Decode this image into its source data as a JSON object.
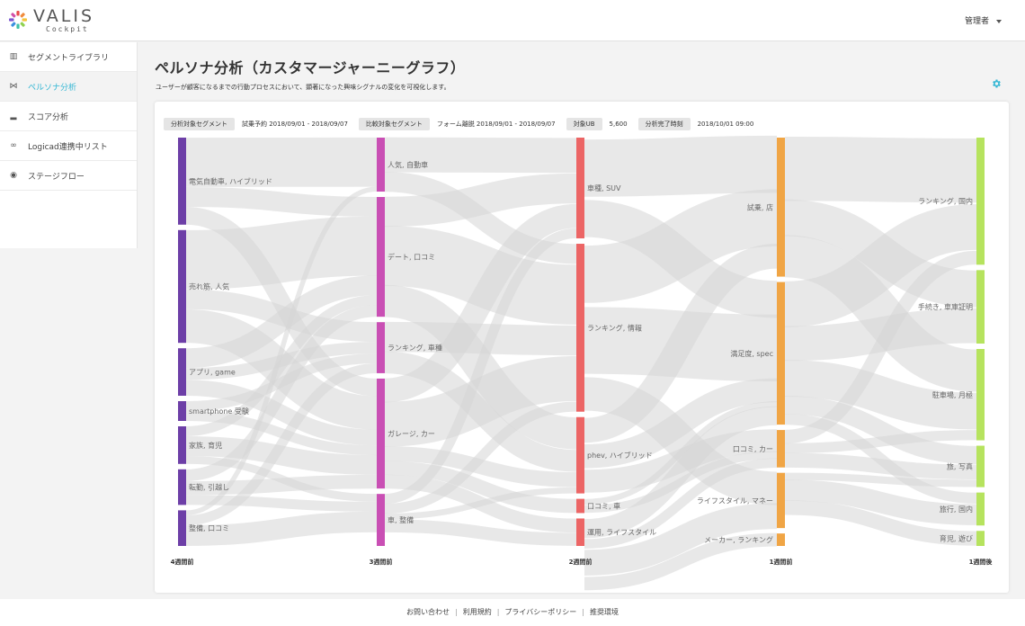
{
  "brand": {
    "name": "VALIS",
    "sub": "Cockpit"
  },
  "user": {
    "label": "管理者"
  },
  "sidebar": {
    "items": [
      {
        "label": "セグメントライブラリ",
        "icon": "bars-icon",
        "glyph": "▥"
      },
      {
        "label": "ペルソナ分析",
        "icon": "sankey-icon",
        "glyph": "⋈"
      },
      {
        "label": "スコア分析",
        "icon": "bar-chart-icon",
        "glyph": "▂"
      },
      {
        "label": "Logicad連携中リスト",
        "icon": "link-icon",
        "glyph": "∞"
      },
      {
        "label": "ステージフロー",
        "icon": "eye-icon",
        "glyph": "◉"
      }
    ]
  },
  "page": {
    "title": "ペルソナ分析（カスタマージャーニーグラフ）",
    "description": "ユーザーが顧客になるまでの行動プロセスにおいて、顕著になった興味シグナルの変化を可視化します。"
  },
  "filters": {
    "segment_label": "分析対象セグメント",
    "segment_value": "試乗予約 2018/09/01 - 2018/09/07",
    "compare_label": "比較対象セグメント",
    "compare_value": "フォーム離脱 2018/09/01 - 2018/09/07",
    "ub_label": "対象UB",
    "ub_value": "5,600",
    "done_label": "分析完了時刻",
    "done_value": "2018/10/01 09:00"
  },
  "colors": {
    "col0": "#6d3fa7",
    "col1": "#c94fb4",
    "col2": "#ec6565",
    "col3": "#f0a545",
    "col4": "#b6e35e",
    "link": "#d6d6d6",
    "accent": "#35b7d4"
  },
  "chart_data": {
    "type": "sankey",
    "columns": [
      {
        "label": "4週間前",
        "nodes": [
          {
            "name": "電気自動車, ハイブリッド",
            "value": 88
          },
          {
            "name": "売れ筋, 人気",
            "value": 114
          },
          {
            "name": "アプリ, game",
            "value": 48
          },
          {
            "name": "smartphone 受験",
            "value": 20
          },
          {
            "name": "家族, 育児",
            "value": 38
          },
          {
            "name": "転勤, 引越し",
            "value": 36
          },
          {
            "name": "整備, 口コミ",
            "value": 36
          }
        ]
      },
      {
        "label": "3週間前",
        "nodes": [
          {
            "name": "人気, 自動車",
            "value": 55
          },
          {
            "name": "デート, 口コミ",
            "value": 122
          },
          {
            "name": "ランキング, 車種",
            "value": 52
          },
          {
            "name": "ガレージ, カー",
            "value": 112
          },
          {
            "name": "車, 整備",
            "value": 53
          }
        ]
      },
      {
        "label": "2週間前",
        "nodes": [
          {
            "name": "車種, SUV",
            "value": 99
          },
          {
            "name": "ランキング, 情報",
            "value": 165
          },
          {
            "name": "phev, ハイブリッド",
            "value": 75
          },
          {
            "name": "口コミ, 車",
            "value": 14
          },
          {
            "name": "運用, ライフスタイル",
            "value": 27
          }
        ]
      },
      {
        "label": "1週間前",
        "nodes": [
          {
            "name": "試乗, 店",
            "value": 156
          },
          {
            "name": "満足度, spec",
            "value": 160
          },
          {
            "name": "口コミ, カー",
            "value": 42
          },
          {
            "name": "ライフスタイル, マネー",
            "value": 62
          },
          {
            "name": "メーカー, ランキング",
            "value": 14
          }
        ]
      },
      {
        "label": "1週間後",
        "nodes": [
          {
            "name": "ランキング, 国内",
            "value": 135
          },
          {
            "name": "手続き, 車庫証明",
            "value": 78
          },
          {
            "name": "駐車場, 月極",
            "value": 97
          },
          {
            "name": "旅, 写真",
            "value": 44
          },
          {
            "name": "旅行, 国内",
            "value": 35
          },
          {
            "name": "育児, 遊び",
            "value": 16
          }
        ]
      }
    ],
    "links": [
      {
        "from": [
          0,
          0
        ],
        "to": [
          1,
          0
        ],
        "value": 50
      },
      {
        "from": [
          0,
          0
        ],
        "to": [
          1,
          1
        ],
        "value": 20
      },
      {
        "from": [
          0,
          0
        ],
        "to": [
          1,
          3
        ],
        "value": 18
      },
      {
        "from": [
          0,
          1
        ],
        "to": [
          1,
          1
        ],
        "value": 60
      },
      {
        "from": [
          0,
          1
        ],
        "to": [
          1,
          2
        ],
        "value": 20
      },
      {
        "from": [
          0,
          1
        ],
        "to": [
          1,
          3
        ],
        "value": 34
      },
      {
        "from": [
          0,
          2
        ],
        "to": [
          1,
          1
        ],
        "value": 20
      },
      {
        "from": [
          0,
          2
        ],
        "to": [
          1,
          2
        ],
        "value": 12
      },
      {
        "from": [
          0,
          2
        ],
        "to": [
          1,
          3
        ],
        "value": 16
      },
      {
        "from": [
          0,
          3
        ],
        "to": [
          1,
          2
        ],
        "value": 10
      },
      {
        "from": [
          0,
          3
        ],
        "to": [
          1,
          3
        ],
        "value": 10
      },
      {
        "from": [
          0,
          4
        ],
        "to": [
          1,
          1
        ],
        "value": 10
      },
      {
        "from": [
          0,
          4
        ],
        "to": [
          1,
          3
        ],
        "value": 20
      },
      {
        "from": [
          0,
          4
        ],
        "to": [
          1,
          4
        ],
        "value": 8
      },
      {
        "from": [
          0,
          5
        ],
        "to": [
          1,
          1
        ],
        "value": 12
      },
      {
        "from": [
          0,
          5
        ],
        "to": [
          1,
          3
        ],
        "value": 14
      },
      {
        "from": [
          0,
          5
        ],
        "to": [
          1,
          4
        ],
        "value": 10
      },
      {
        "from": [
          0,
          6
        ],
        "to": [
          1,
          0
        ],
        "value": 5
      },
      {
        "from": [
          0,
          6
        ],
        "to": [
          1,
          2
        ],
        "value": 10
      },
      {
        "from": [
          0,
          6
        ],
        "to": [
          1,
          4
        ],
        "value": 21
      },
      {
        "from": [
          1,
          0
        ],
        "to": [
          2,
          0
        ],
        "value": 35
      },
      {
        "from": [
          1,
          0
        ],
        "to": [
          2,
          1
        ],
        "value": 20
      },
      {
        "from": [
          1,
          1
        ],
        "to": [
          2,
          0
        ],
        "value": 30
      },
      {
        "from": [
          1,
          1
        ],
        "to": [
          2,
          1
        ],
        "value": 60
      },
      {
        "from": [
          1,
          1
        ],
        "to": [
          2,
          2
        ],
        "value": 32
      },
      {
        "from": [
          1,
          2
        ],
        "to": [
          2,
          1
        ],
        "value": 30
      },
      {
        "from": [
          1,
          2
        ],
        "to": [
          2,
          2
        ],
        "value": 22
      },
      {
        "from": [
          1,
          3
        ],
        "to": [
          2,
          0
        ],
        "value": 24
      },
      {
        "from": [
          1,
          3
        ],
        "to": [
          2,
          1
        ],
        "value": 45
      },
      {
        "from": [
          1,
          3
        ],
        "to": [
          2,
          2
        ],
        "value": 15
      },
      {
        "from": [
          1,
          3
        ],
        "to": [
          2,
          3
        ],
        "value": 14
      },
      {
        "from": [
          1,
          3
        ],
        "to": [
          2,
          4
        ],
        "value": 14
      },
      {
        "from": [
          1,
          4
        ],
        "to": [
          2,
          0
        ],
        "value": 10
      },
      {
        "from": [
          1,
          4
        ],
        "to": [
          2,
          1
        ],
        "value": 10
      },
      {
        "from": [
          1,
          4
        ],
        "to": [
          2,
          2
        ],
        "value": 6
      },
      {
        "from": [
          1,
          4
        ],
        "to": [
          2,
          3
        ],
        "value": 0
      },
      {
        "from": [
          1,
          4
        ],
        "to": [
          2,
          4
        ],
        "value": 13
      },
      {
        "from": [
          2,
          0
        ],
        "to": [
          3,
          0
        ],
        "value": 60
      },
      {
        "from": [
          2,
          0
        ],
        "to": [
          3,
          1
        ],
        "value": 39
      },
      {
        "from": [
          2,
          1
        ],
        "to": [
          3,
          0
        ],
        "value": 60
      },
      {
        "from": [
          2,
          1
        ],
        "to": [
          3,
          1
        ],
        "value": 70
      },
      {
        "from": [
          2,
          1
        ],
        "to": [
          3,
          3
        ],
        "value": 35
      },
      {
        "from": [
          2,
          2
        ],
        "to": [
          3,
          0
        ],
        "value": 26
      },
      {
        "from": [
          2,
          2
        ],
        "to": [
          3,
          1
        ],
        "value": 25
      },
      {
        "from": [
          2,
          2
        ],
        "to": [
          3,
          2
        ],
        "value": 24
      },
      {
        "from": [
          2,
          3
        ],
        "to": [
          3,
          1
        ],
        "value": 6
      },
      {
        "from": [
          2,
          3
        ],
        "to": [
          3,
          2
        ],
        "value": 8
      },
      {
        "from": [
          2,
          4
        ],
        "to": [
          3,
          1
        ],
        "value": 20
      },
      {
        "from": [
          2,
          4
        ],
        "to": [
          3,
          2
        ],
        "value": 10
      },
      {
        "from": [
          2,
          4
        ],
        "to": [
          3,
          3
        ],
        "value": 27
      },
      {
        "from": [
          2,
          4
        ],
        "to": [
          3,
          4
        ],
        "value": 14
      },
      {
        "from": [
          3,
          0
        ],
        "to": [
          4,
          0
        ],
        "value": 70
      },
      {
        "from": [
          3,
          0
        ],
        "to": [
          4,
          1
        ],
        "value": 40
      },
      {
        "from": [
          3,
          0
        ],
        "to": [
          4,
          2
        ],
        "value": 46
      },
      {
        "from": [
          3,
          1
        ],
        "to": [
          4,
          0
        ],
        "value": 50
      },
      {
        "from": [
          3,
          1
        ],
        "to": [
          4,
          1
        ],
        "value": 38
      },
      {
        "from": [
          3,
          1
        ],
        "to": [
          4,
          2
        ],
        "value": 40
      },
      {
        "from": [
          3,
          1
        ],
        "to": [
          4,
          3
        ],
        "value": 20
      },
      {
        "from": [
          3,
          1
        ],
        "to": [
          4,
          4
        ],
        "value": 12
      },
      {
        "from": [
          3,
          2
        ],
        "to": [
          4,
          0
        ],
        "value": 15
      },
      {
        "from": [
          3,
          2
        ],
        "to": [
          4,
          2
        ],
        "value": 11
      },
      {
        "from": [
          3,
          2
        ],
        "to": [
          4,
          3
        ],
        "value": 16
      },
      {
        "from": [
          3,
          3
        ],
        "to": [
          4,
          3
        ],
        "value": 8
      },
      {
        "from": [
          3,
          3
        ],
        "to": [
          4,
          4
        ],
        "value": 23
      },
      {
        "from": [
          3,
          3
        ],
        "to": [
          4,
          5
        ],
        "value": 16
      },
      {
        "from": [
          3,
          3
        ],
        "to": [
          4,
          2
        ],
        "value": 0
      },
      {
        "from": [
          3,
          4
        ],
        "to": [
          4,
          0
        ],
        "value": 0
      },
      {
        "from": [
          3,
          4
        ],
        "to": [
          4,
          4
        ],
        "value": 0
      }
    ]
  },
  "footer": {
    "items": [
      "お問い合わせ",
      "利用規約",
      "プライバシーポリシー",
      "推奨環境"
    ]
  }
}
